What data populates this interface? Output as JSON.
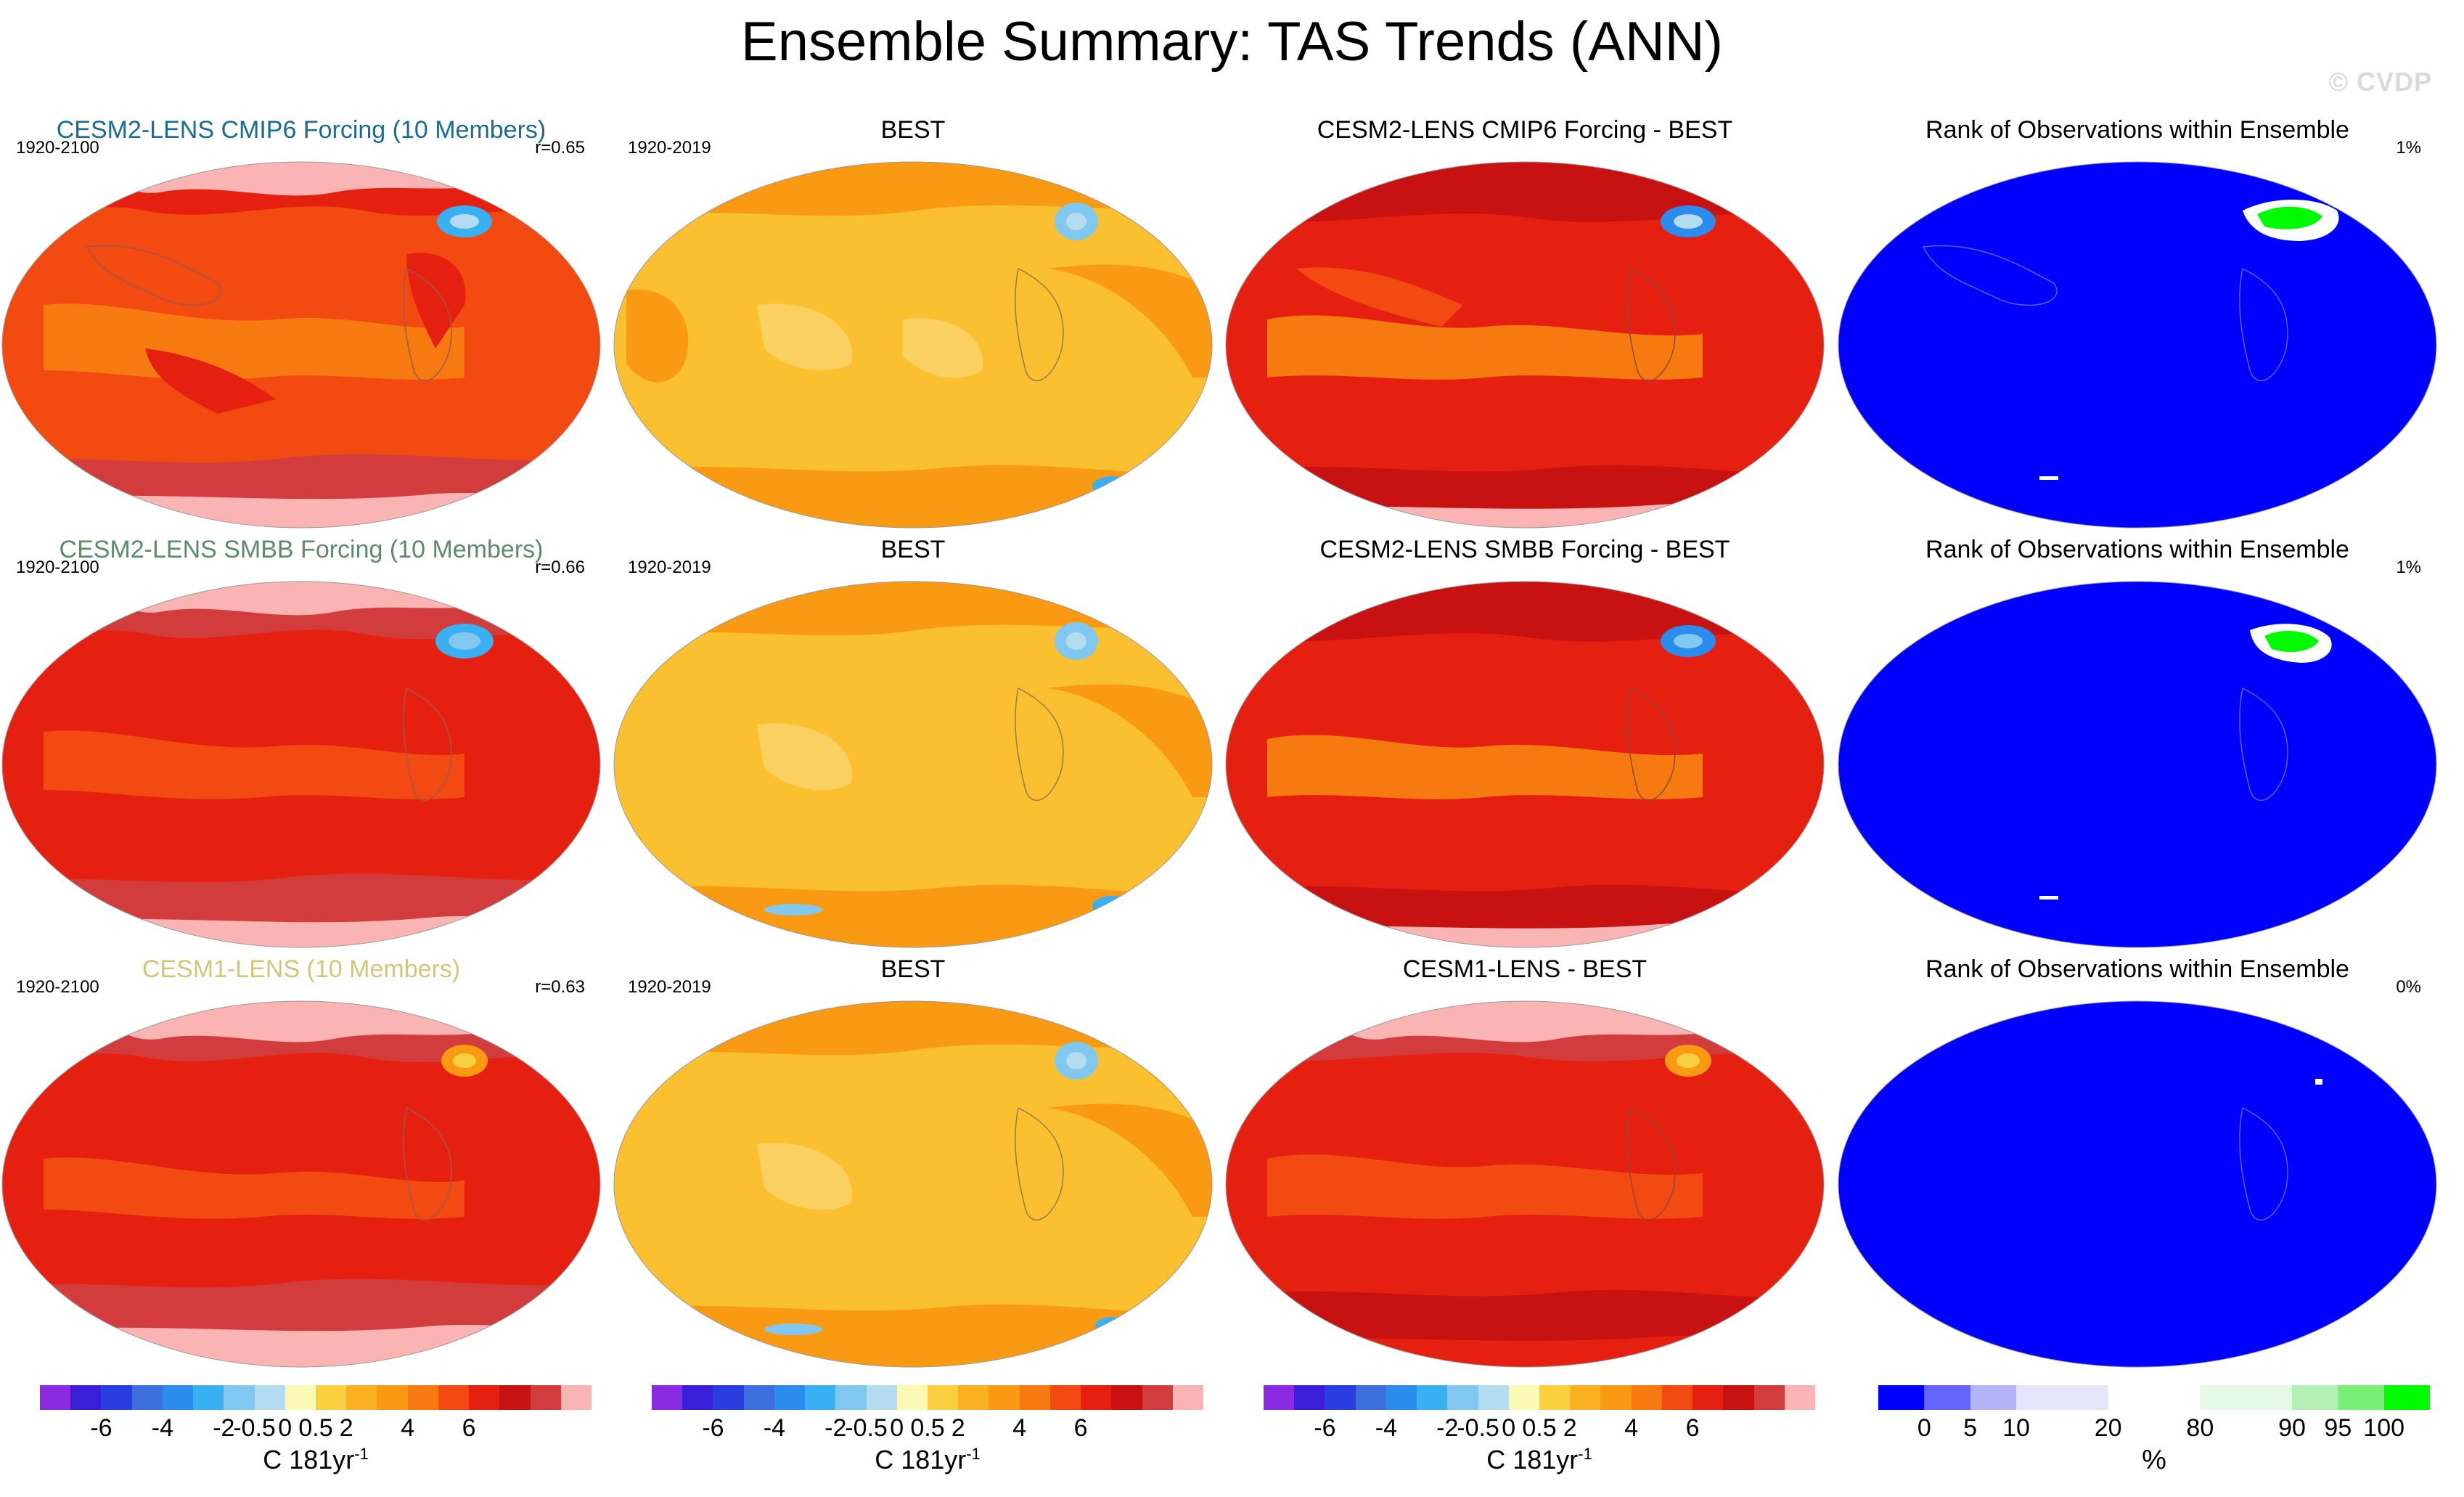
{
  "title": "Ensemble Summary: TAS Trends (ANN)",
  "watermark": "© CVDP",
  "rows": [
    {
      "model": {
        "title": "CESM2-LENS CMIP6 Forcing (10 Members)",
        "title_color": "#1a6a94",
        "period": "1920-2100",
        "corr": "r=0.65"
      },
      "obs": {
        "title": "BEST",
        "period": "1920-2019"
      },
      "diff": {
        "title": "CESM2-LENS CMIP6 Forcing - BEST"
      },
      "rank": {
        "title": "Rank of Observations within Ensemble",
        "pct": "1%"
      }
    },
    {
      "model": {
        "title": "CESM2-LENS SMBB Forcing (10 Members)",
        "title_color": "#5e8a6a",
        "period": "1920-2100",
        "corr": "r=0.66"
      },
      "obs": {
        "title": "BEST",
        "period": "1920-2019"
      },
      "diff": {
        "title": "CESM2-LENS SMBB Forcing - BEST"
      },
      "rank": {
        "title": "Rank of Observations within Ensemble",
        "pct": "1%"
      }
    },
    {
      "model": {
        "title": "CESM1-LENS (10 Members)",
        "title_color": "#d0c878",
        "period": "1920-2100",
        "corr": "r=0.63"
      },
      "obs": {
        "title": "BEST",
        "period": "1920-2019"
      },
      "diff": {
        "title": "CESM1-LENS - BEST"
      },
      "rank": {
        "title": "Rank of Observations within Ensemble",
        "pct": "0%"
      }
    }
  ],
  "colorbars": {
    "trend": {
      "colors": [
        "#8a2be2",
        "#3a1fd8",
        "#2a3ee0",
        "#3d6fdc",
        "#2c8cee",
        "#38b0f2",
        "#80c8f0",
        "#b4dcf0",
        "#fafab4",
        "#fbd040",
        "#fbb020",
        "#fa9a12",
        "#f77a10",
        "#f24a10",
        "#e62010",
        "#c81212",
        "#d23c3c",
        "#fab4b4"
      ],
      "ticks": [
        "-6",
        "-4",
        "-2",
        "-0.5",
        "0",
        "0.5",
        "2",
        "4",
        "6"
      ],
      "units": "C 181yr",
      "units_exp": "-1"
    },
    "rank": {
      "colors": [
        "#0000ff",
        "#6464ff",
        "#b4b4f8",
        "#e4e4fa",
        "#e4e4fa",
        "#ffffff",
        "#ffffff",
        "#e4fae4",
        "#e4fae4",
        "#b4f0b4",
        "#78f078",
        "#00fa00"
      ],
      "ticks": [
        "0",
        "5",
        "10",
        "20",
        "80",
        "90",
        "95",
        "100"
      ],
      "units": "%"
    }
  }
}
